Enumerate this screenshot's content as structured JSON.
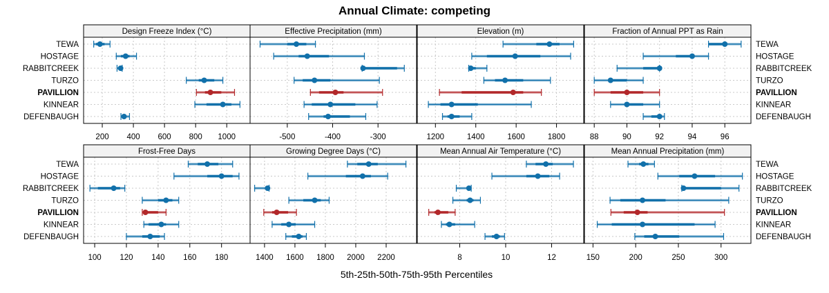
{
  "chart_data": {
    "type": "dotplot-percentiles",
    "title": "Annual Climate: competing",
    "xlabel": "5th-25th-50th-75th-95th Percentiles",
    "grid": true,
    "highlight": "PAVILLION",
    "colors": {
      "default": "#1170aa",
      "highlight": "#b2282a"
    },
    "sites": [
      "TEWA",
      "HOSTAGE",
      "RABBITCREEK",
      "TURZO",
      "PAVILLION",
      "KINNEAR",
      "DEFENBAUGH"
    ],
    "percentiles": [
      "p5",
      "p25",
      "p50",
      "p75",
      "p95"
    ],
    "panels": [
      {
        "title": "Design Freeze Index (°C)",
        "xlim": [
          80,
          1150
        ],
        "ticks": [
          200,
          400,
          600,
          800,
          1000
        ],
        "values": [
          [
            145,
            160,
            185,
            215,
            250
          ],
          [
            290,
            320,
            350,
            375,
            420
          ],
          [
            295,
            305,
            318,
            325,
            328
          ],
          [
            740,
            820,
            855,
            920,
            975
          ],
          [
            805,
            860,
            895,
            965,
            1050
          ],
          [
            795,
            870,
            975,
            1030,
            1085
          ],
          [
            320,
            330,
            340,
            355,
            375
          ]
        ]
      },
      {
        "title": "Effective Precipitation (mm)",
        "xlim": [
          -582,
          -215
        ],
        "ticks": [
          -500,
          -400,
          -300
        ],
        "values": [
          [
            -560,
            -500,
            -480,
            -458,
            -438
          ],
          [
            -530,
            -475,
            -456,
            -408,
            -330
          ],
          [
            -335,
            -334,
            -333,
            -258,
            -242
          ],
          [
            -485,
            -466,
            -440,
            -405,
            -297
          ],
          [
            -449,
            -430,
            -394,
            -376,
            -290
          ],
          [
            -463,
            -446,
            -405,
            -350,
            -302
          ],
          [
            -453,
            -420,
            -410,
            -362,
            -327
          ]
        ]
      },
      {
        "title": "Elevation (m)",
        "xlim": [
          1110,
          1935
        ],
        "ticks": [
          1200,
          1400,
          1600,
          1800
        ],
        "values": [
          [
            1535,
            1700,
            1765,
            1815,
            1885
          ],
          [
            1380,
            1455,
            1595,
            1720,
            1870
          ],
          [
            1365,
            1370,
            1375,
            1400,
            1455
          ],
          [
            1440,
            1495,
            1545,
            1635,
            1770
          ],
          [
            1220,
            1330,
            1585,
            1635,
            1725
          ],
          [
            1165,
            1225,
            1280,
            1410,
            1675
          ],
          [
            1235,
            1260,
            1280,
            1320,
            1380
          ]
        ]
      },
      {
        "title": "Fraction of Annual PPT as Rain",
        "xlim": [
          87.4,
          97.6
        ],
        "ticks": [
          88,
          90,
          92,
          94,
          96
        ],
        "values": [
          [
            95.0,
            95.0,
            96.0,
            96.0,
            97.0
          ],
          [
            91.0,
            93.0,
            94.0,
            94.0,
            95.0
          ],
          [
            89.4,
            91.0,
            92.0,
            92.0,
            92.0
          ],
          [
            88.0,
            89.0,
            89.0,
            90.0,
            91.0
          ],
          [
            88.0,
            89.0,
            90.0,
            91.0,
            92.0
          ],
          [
            89.0,
            90.0,
            90.0,
            91.0,
            92.0
          ],
          [
            91.0,
            91.5,
            92.0,
            92.0,
            92.3
          ]
        ]
      },
      {
        "title": "Frost-Free Days",
        "xlim": [
          93,
          198
        ],
        "ticks": [
          100,
          120,
          140,
          160,
          180
        ],
        "values": [
          [
            159,
            165,
            171,
            178,
            187
          ],
          [
            150,
            171,
            180,
            187,
            191
          ],
          [
            97,
            102,
            112,
            116,
            119
          ],
          [
            130,
            140,
            145,
            149,
            153
          ],
          [
            130,
            131,
            132,
            140,
            145
          ],
          [
            131,
            134,
            142,
            145,
            153
          ],
          [
            120,
            130,
            135,
            141,
            144
          ]
        ]
      },
      {
        "title": "Growing Degree Days (°C)",
        "xlim": [
          1305,
          2400
        ],
        "ticks": [
          1400,
          1600,
          1800,
          2000,
          2200
        ],
        "values": [
          [
            1945,
            2010,
            2085,
            2145,
            2330
          ],
          [
            1685,
            1935,
            2045,
            2100,
            2210
          ],
          [
            1335,
            1405,
            1420,
            1425,
            1430
          ],
          [
            1560,
            1655,
            1730,
            1770,
            1825
          ],
          [
            1395,
            1450,
            1480,
            1555,
            1610
          ],
          [
            1450,
            1510,
            1560,
            1605,
            1730
          ],
          [
            1540,
            1580,
            1625,
            1650,
            1675
          ]
        ]
      },
      {
        "title": "Mean Annual Air Temperature (°C)",
        "xlim": [
          6.15,
          13.4
        ],
        "ticks": [
          8,
          10,
          12
        ],
        "values": [
          [
            10.9,
            11.3,
            11.75,
            12.05,
            12.95
          ],
          [
            9.4,
            10.9,
            11.4,
            11.9,
            12.35
          ],
          [
            7.85,
            8.35,
            8.4,
            8.45,
            8.5
          ],
          [
            7.7,
            8.3,
            8.45,
            8.6,
            8.9
          ],
          [
            6.65,
            6.9,
            7.05,
            7.5,
            7.8
          ],
          [
            7.2,
            7.4,
            7.55,
            7.8,
            8.65
          ],
          [
            9.1,
            9.4,
            9.6,
            9.75,
            9.95
          ]
        ]
      },
      {
        "title": "Mean Annual Precipitation (mm)",
        "xlim": [
          140,
          335
        ],
        "ticks": [
          150,
          200,
          250,
          300
        ],
        "values": [
          [
            191,
            204,
            209,
            215,
            222
          ],
          [
            226,
            251,
            269,
            293,
            325
          ],
          [
            254,
            255,
            256,
            300,
            321
          ],
          [
            170,
            182,
            208,
            235,
            309
          ],
          [
            171,
            186,
            202,
            214,
            304
          ],
          [
            155,
            172,
            208,
            269,
            293
          ],
          [
            199,
            210,
            223,
            251,
            303
          ]
        ]
      }
    ]
  }
}
